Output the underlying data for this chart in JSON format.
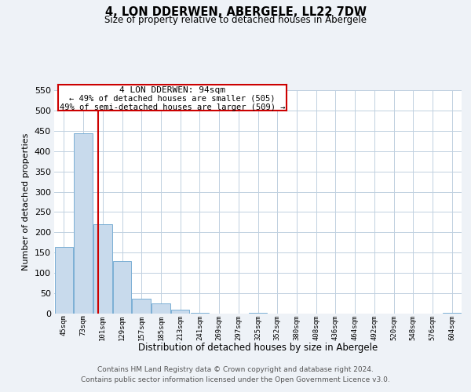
{
  "title": "4, LON DDERWEN, ABERGELE, LL22 7DW",
  "subtitle": "Size of property relative to detached houses in Abergele",
  "xlabel": "Distribution of detached houses by size in Abergele",
  "ylabel": "Number of detached properties",
  "bin_labels": [
    "45sqm",
    "73sqm",
    "101sqm",
    "129sqm",
    "157sqm",
    "185sqm",
    "213sqm",
    "241sqm",
    "269sqm",
    "297sqm",
    "325sqm",
    "352sqm",
    "380sqm",
    "408sqm",
    "436sqm",
    "464sqm",
    "492sqm",
    "520sqm",
    "548sqm",
    "576sqm",
    "604sqm"
  ],
  "bar_heights": [
    165,
    443,
    220,
    130,
    37,
    26,
    9,
    2,
    0,
    0,
    1,
    0,
    0,
    0,
    0,
    0,
    0,
    0,
    0,
    0,
    2
  ],
  "bar_color": "#c8daec",
  "bar_edgecolor": "#7bafd4",
  "vline_x": 1.75,
  "vline_color": "#cc0000",
  "ylim": [
    0,
    550
  ],
  "yticks": [
    0,
    50,
    100,
    150,
    200,
    250,
    300,
    350,
    400,
    450,
    500,
    550
  ],
  "annotation_title": "4 LON DDERWEN: 94sqm",
  "annotation_line1": "← 49% of detached houses are smaller (505)",
  "annotation_line2": "49% of semi-detached houses are larger (509) →",
  "footer_line1": "Contains HM Land Registry data © Crown copyright and database right 2024.",
  "footer_line2": "Contains public sector information licensed under the Open Government Licence v3.0.",
  "fig_bg_color": "#eef2f7",
  "plot_bg_color": "#ffffff",
  "grid_color": "#c0d0e0"
}
